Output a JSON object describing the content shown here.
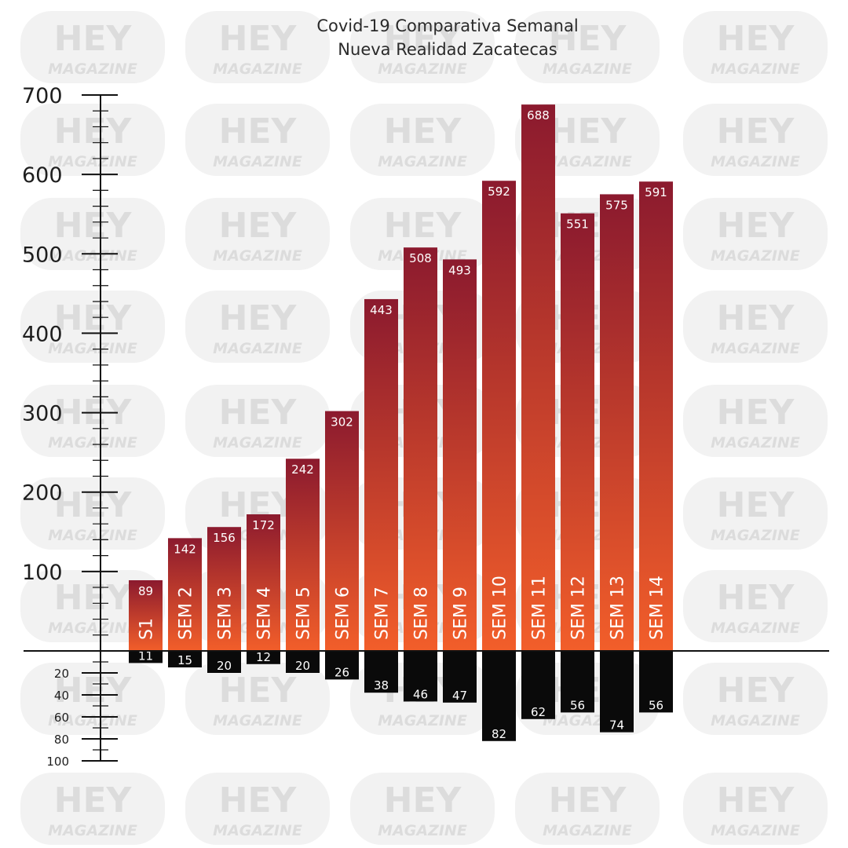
{
  "watermark": {
    "line1": "HEY",
    "line2": "MAGAZINE"
  },
  "chart_data": {
    "type": "bar",
    "title": "Covid-19 Comparativa Semanal",
    "subtitle": "Nueva Realidad  Zacatecas",
    "categories": [
      "S1",
      "SEM 2",
      "SEM 3",
      "SEM 4",
      "SEM 5",
      "SEM 6",
      "SEM 7",
      "SEM 8",
      "SEM 9",
      "SEM 10",
      "SEM 11",
      "SEM 12",
      "SEM 13",
      "SEM 14"
    ],
    "series": [
      {
        "values": [
          89,
          142,
          156,
          172,
          242,
          302,
          443,
          508,
          493,
          592,
          688,
          551,
          575,
          591
        ]
      },
      {
        "values": [
          11,
          15,
          20,
          12,
          20,
          26,
          38,
          46,
          47,
          82,
          62,
          56,
          74,
          56
        ]
      }
    ],
    "ylim_upper": [
      0,
      700
    ],
    "ylim_lower": [
      0,
      100
    ],
    "yticks_upper": [
      "100",
      "200",
      "300",
      "400",
      "500",
      "600",
      "700"
    ],
    "yticks_lower": [
      "20",
      "40",
      "60",
      "80",
      "100"
    ],
    "colors": {
      "upper_top": "#8b1a2e",
      "upper_bottom": "#f25e2a",
      "lower": "#0a0a0a",
      "axis": "#111111"
    },
    "grid": false
  }
}
